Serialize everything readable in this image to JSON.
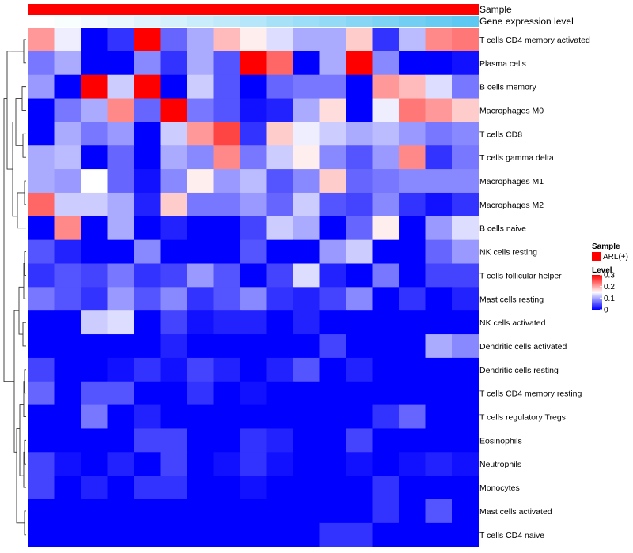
{
  "chart_data": {
    "type": "heatmap",
    "annotations": [
      {
        "name": "Sample",
        "kind": "categorical",
        "value": "ARL(+)",
        "color": "#ff0000"
      },
      {
        "name": "Gene expression level",
        "kind": "continuous",
        "color_low": "#ffffff",
        "color_high": "#4fc3f0"
      }
    ],
    "rows": [
      "T cells CD4 memory activated",
      "Plasma cells",
      "B cells memory",
      "Macrophages M0",
      "T cells CD8",
      "T cells gamma delta",
      "Macrophages M1",
      "Macrophages M2",
      "B cells naive",
      "NK cells resting",
      "T cells follicular helper",
      "Mast cells resting",
      "NK cells activated",
      "Dendritic cells activated",
      "Dendritic cells resting",
      "T cells CD4 memory resting",
      "T cells regulatory  Tregs",
      "Eosinophils",
      "Neutrophils",
      "Monocytes",
      "Mast cells activated",
      "T cells CD4 naive"
    ],
    "values": [
      [
        0.21,
        0.14,
        0.0,
        0.03,
        0.3,
        0.06,
        0.1,
        0.19,
        0.16,
        0.13,
        0.1,
        0.1,
        0.18,
        0.03,
        0.11,
        0.22,
        0.23
      ],
      [
        0.07,
        0.1,
        0.0,
        0.0,
        0.08,
        0.03,
        0.1,
        0.05,
        0.3,
        0.24,
        0.0,
        0.1,
        0.3,
        0.08,
        0.0,
        0.0,
        0.01
      ],
      [
        0.09,
        0.0,
        0.3,
        0.12,
        0.3,
        0.0,
        0.12,
        0.05,
        0.0,
        0.06,
        0.07,
        0.07,
        0.0,
        0.21,
        0.19,
        0.13,
        0.07
      ],
      [
        0.0,
        0.07,
        0.1,
        0.22,
        0.06,
        0.3,
        0.07,
        0.05,
        0.01,
        0.02,
        0.1,
        0.17,
        0.0,
        0.14,
        0.23,
        0.21,
        0.18
      ],
      [
        0.0,
        0.1,
        0.07,
        0.09,
        0.0,
        0.12,
        0.21,
        0.26,
        0.03,
        0.18,
        0.14,
        0.12,
        0.1,
        0.11,
        0.09,
        0.07,
        0.08
      ],
      [
        0.1,
        0.11,
        0.0,
        0.06,
        0.0,
        0.1,
        0.08,
        0.22,
        0.07,
        0.12,
        0.16,
        0.08,
        0.05,
        0.09,
        0.22,
        0.03,
        0.07
      ],
      [
        0.1,
        0.09,
        0.15,
        0.06,
        0.01,
        0.08,
        0.16,
        0.09,
        0.11,
        0.05,
        0.08,
        0.18,
        0.06,
        0.07,
        0.08,
        0.08,
        0.08
      ],
      [
        0.24,
        0.12,
        0.12,
        0.1,
        0.02,
        0.18,
        0.07,
        0.07,
        0.09,
        0.06,
        0.12,
        0.05,
        0.04,
        0.08,
        0.03,
        0.01,
        0.03
      ],
      [
        0.0,
        0.22,
        0.0,
        0.1,
        0.0,
        0.02,
        0.0,
        0.0,
        0.04,
        0.12,
        0.1,
        0.0,
        0.06,
        0.16,
        0.0,
        0.09,
        0.13
      ],
      [
        0.05,
        0.02,
        0.0,
        0.0,
        0.08,
        0.0,
        0.0,
        0.0,
        0.05,
        0.0,
        0.0,
        0.09,
        0.12,
        0.0,
        0.0,
        0.06,
        0.09
      ],
      [
        0.03,
        0.05,
        0.04,
        0.07,
        0.03,
        0.04,
        0.09,
        0.05,
        0.0,
        0.04,
        0.13,
        0.02,
        0.0,
        0.07,
        0.0,
        0.04,
        0.04
      ],
      [
        0.07,
        0.05,
        0.03,
        0.09,
        0.05,
        0.08,
        0.03,
        0.05,
        0.08,
        0.03,
        0.02,
        0.04,
        0.08,
        0.0,
        0.03,
        0.0,
        0.02
      ],
      [
        0.0,
        0.0,
        0.12,
        0.13,
        0.0,
        0.04,
        0.01,
        0.02,
        0.02,
        0.0,
        0.02,
        0.0,
        0.0,
        0.0,
        0.0,
        0.0,
        0.0
      ],
      [
        0.0,
        0.0,
        0.0,
        0.0,
        0.0,
        0.02,
        0.0,
        0.0,
        0.0,
        0.0,
        0.0,
        0.04,
        0.0,
        0.0,
        0.0,
        0.1,
        0.08
      ],
      [
        0.04,
        0.0,
        0.0,
        0.01,
        0.03,
        0.01,
        0.04,
        0.02,
        0.0,
        0.02,
        0.05,
        0.0,
        0.02,
        0.0,
        0.0,
        0.0,
        0.0
      ],
      [
        0.06,
        0.0,
        0.05,
        0.05,
        0.0,
        0.0,
        0.03,
        0.0,
        0.01,
        0.0,
        0.0,
        0.0,
        0.0,
        0.0,
        0.0,
        0.0,
        0.0
      ],
      [
        0.0,
        0.0,
        0.07,
        0.0,
        0.02,
        0.0,
        0.0,
        0.0,
        0.0,
        0.0,
        0.0,
        0.0,
        0.0,
        0.03,
        0.06,
        0.0,
        0.0
      ],
      [
        0.0,
        0.0,
        0.0,
        0.0,
        0.04,
        0.04,
        0.0,
        0.0,
        0.03,
        0.02,
        0.0,
        0.0,
        0.04,
        0.0,
        0.0,
        0.0,
        0.0
      ],
      [
        0.04,
        0.01,
        0.0,
        0.02,
        0.0,
        0.04,
        0.0,
        0.01,
        0.03,
        0.01,
        0.0,
        0.0,
        0.01,
        0.0,
        0.01,
        0.02,
        0.01
      ],
      [
        0.04,
        0.0,
        0.02,
        0.0,
        0.03,
        0.03,
        0.0,
        0.0,
        0.01,
        0.0,
        0.0,
        0.0,
        0.0,
        0.03,
        0.0,
        0.0,
        0.0
      ],
      [
        0.0,
        0.0,
        0.0,
        0.0,
        0.0,
        0.0,
        0.0,
        0.0,
        0.0,
        0.0,
        0.0,
        0.0,
        0.0,
        0.03,
        0.0,
        0.05,
        0.0
      ],
      [
        0.0,
        0.0,
        0.0,
        0.0,
        0.0,
        0.0,
        0.0,
        0.0,
        0.0,
        0.0,
        0.0,
        0.03,
        0.03,
        0.0,
        0.0,
        0.0,
        0.0
      ]
    ],
    "gene_expression_level": [
      0.0,
      0.04,
      0.08,
      0.12,
      0.18,
      0.24,
      0.3,
      0.36,
      0.42,
      0.5,
      0.56,
      0.62,
      0.68,
      0.74,
      0.8,
      0.86,
      0.92
    ],
    "legend": {
      "sample_title": "Sample",
      "sample_entry": "ARL(+)",
      "level_title": "Level",
      "ticks": [
        0.3,
        0.2,
        0.1,
        0
      ],
      "tick_labels": [
        "0.3",
        "0.2",
        "0.1",
        "0"
      ],
      "range": [
        0,
        0.3
      ],
      "colors": {
        "low": "#0000ff",
        "mid": "#ffffff",
        "high": "#ff0000"
      }
    }
  }
}
